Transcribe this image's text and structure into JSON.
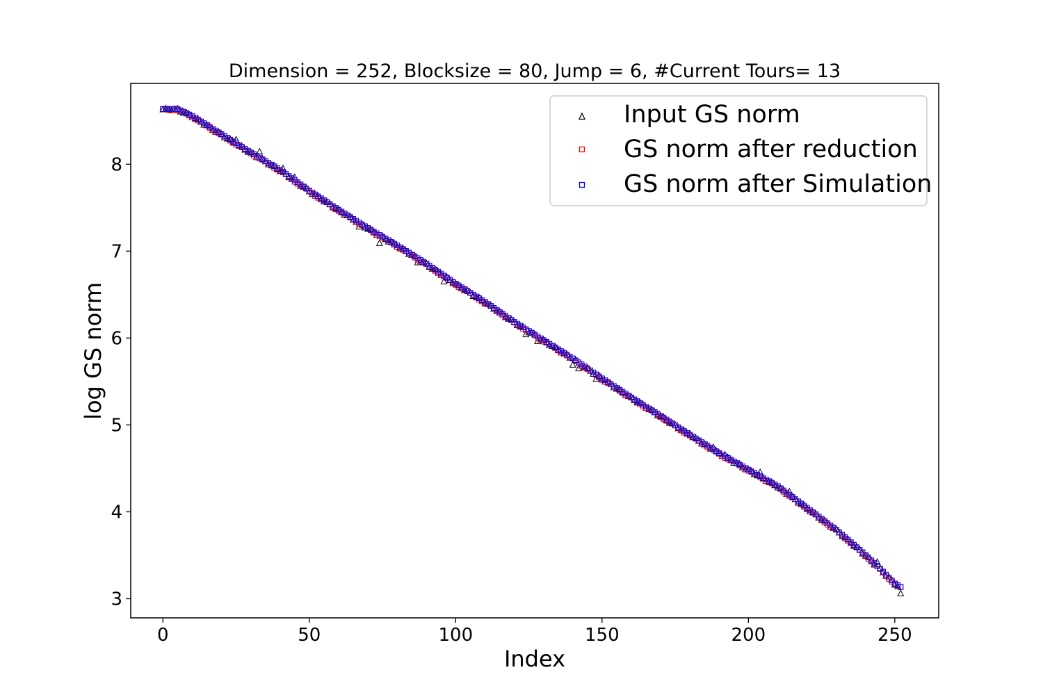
{
  "chart_data": {
    "type": "scatter",
    "title": "Dimension = 252, Blocksize = 80, Jump = 6, #Current Tours= 13",
    "xlabel": "Index",
    "ylabel": "log GS norm",
    "xlim": [
      -11,
      265
    ],
    "ylim": [
      2.78,
      8.93
    ],
    "xticks": [
      0,
      50,
      100,
      150,
      200,
      250
    ],
    "yticks": [
      3,
      4,
      5,
      6,
      7,
      8
    ],
    "grid": false,
    "legend_position": "top-right",
    "n_points": 253,
    "x": {
      "start": 0,
      "end": 252,
      "step": 1
    },
    "anchors": {
      "x": [
        0,
        5,
        10,
        20,
        30,
        40,
        50,
        60,
        70,
        80,
        90,
        100,
        110,
        120,
        130,
        140,
        150,
        160,
        170,
        180,
        190,
        200,
        210,
        220,
        230,
        240,
        245,
        250,
        252
      ],
      "y": [
        8.63,
        8.63,
        8.55,
        8.34,
        8.13,
        7.93,
        7.69,
        7.47,
        7.26,
        7.06,
        6.85,
        6.62,
        6.41,
        6.18,
        5.97,
        5.76,
        5.53,
        5.31,
        5.1,
        4.88,
        4.67,
        4.48,
        4.29,
        4.04,
        3.79,
        3.5,
        3.34,
        3.17,
        3.13
      ]
    },
    "series": [
      {
        "name": "Input GS norm",
        "marker": "triangle",
        "color": "#000000",
        "offsets": {
          "5": 0.0,
          "25": 0.06,
          "33": 0.08,
          "41": 0.04,
          "45": 0.03,
          "67": -0.05,
          "74": -0.09,
          "87": -0.04,
          "96": -0.06,
          "124": -0.05,
          "128": -0.04,
          "140": -0.06,
          "142": -0.07,
          "148": -0.05,
          "180": 0.03,
          "188": 0.04,
          "192": 0.03,
          "204": 0.04,
          "214": 0.05,
          "244": 0.05,
          "252": -0.08
        }
      },
      {
        "name": "GS norm after reduction",
        "marker": "square",
        "color": "#ff0000"
      },
      {
        "name": "GS norm after Simulation",
        "marker": "square",
        "color": "#0000ff"
      }
    ]
  }
}
